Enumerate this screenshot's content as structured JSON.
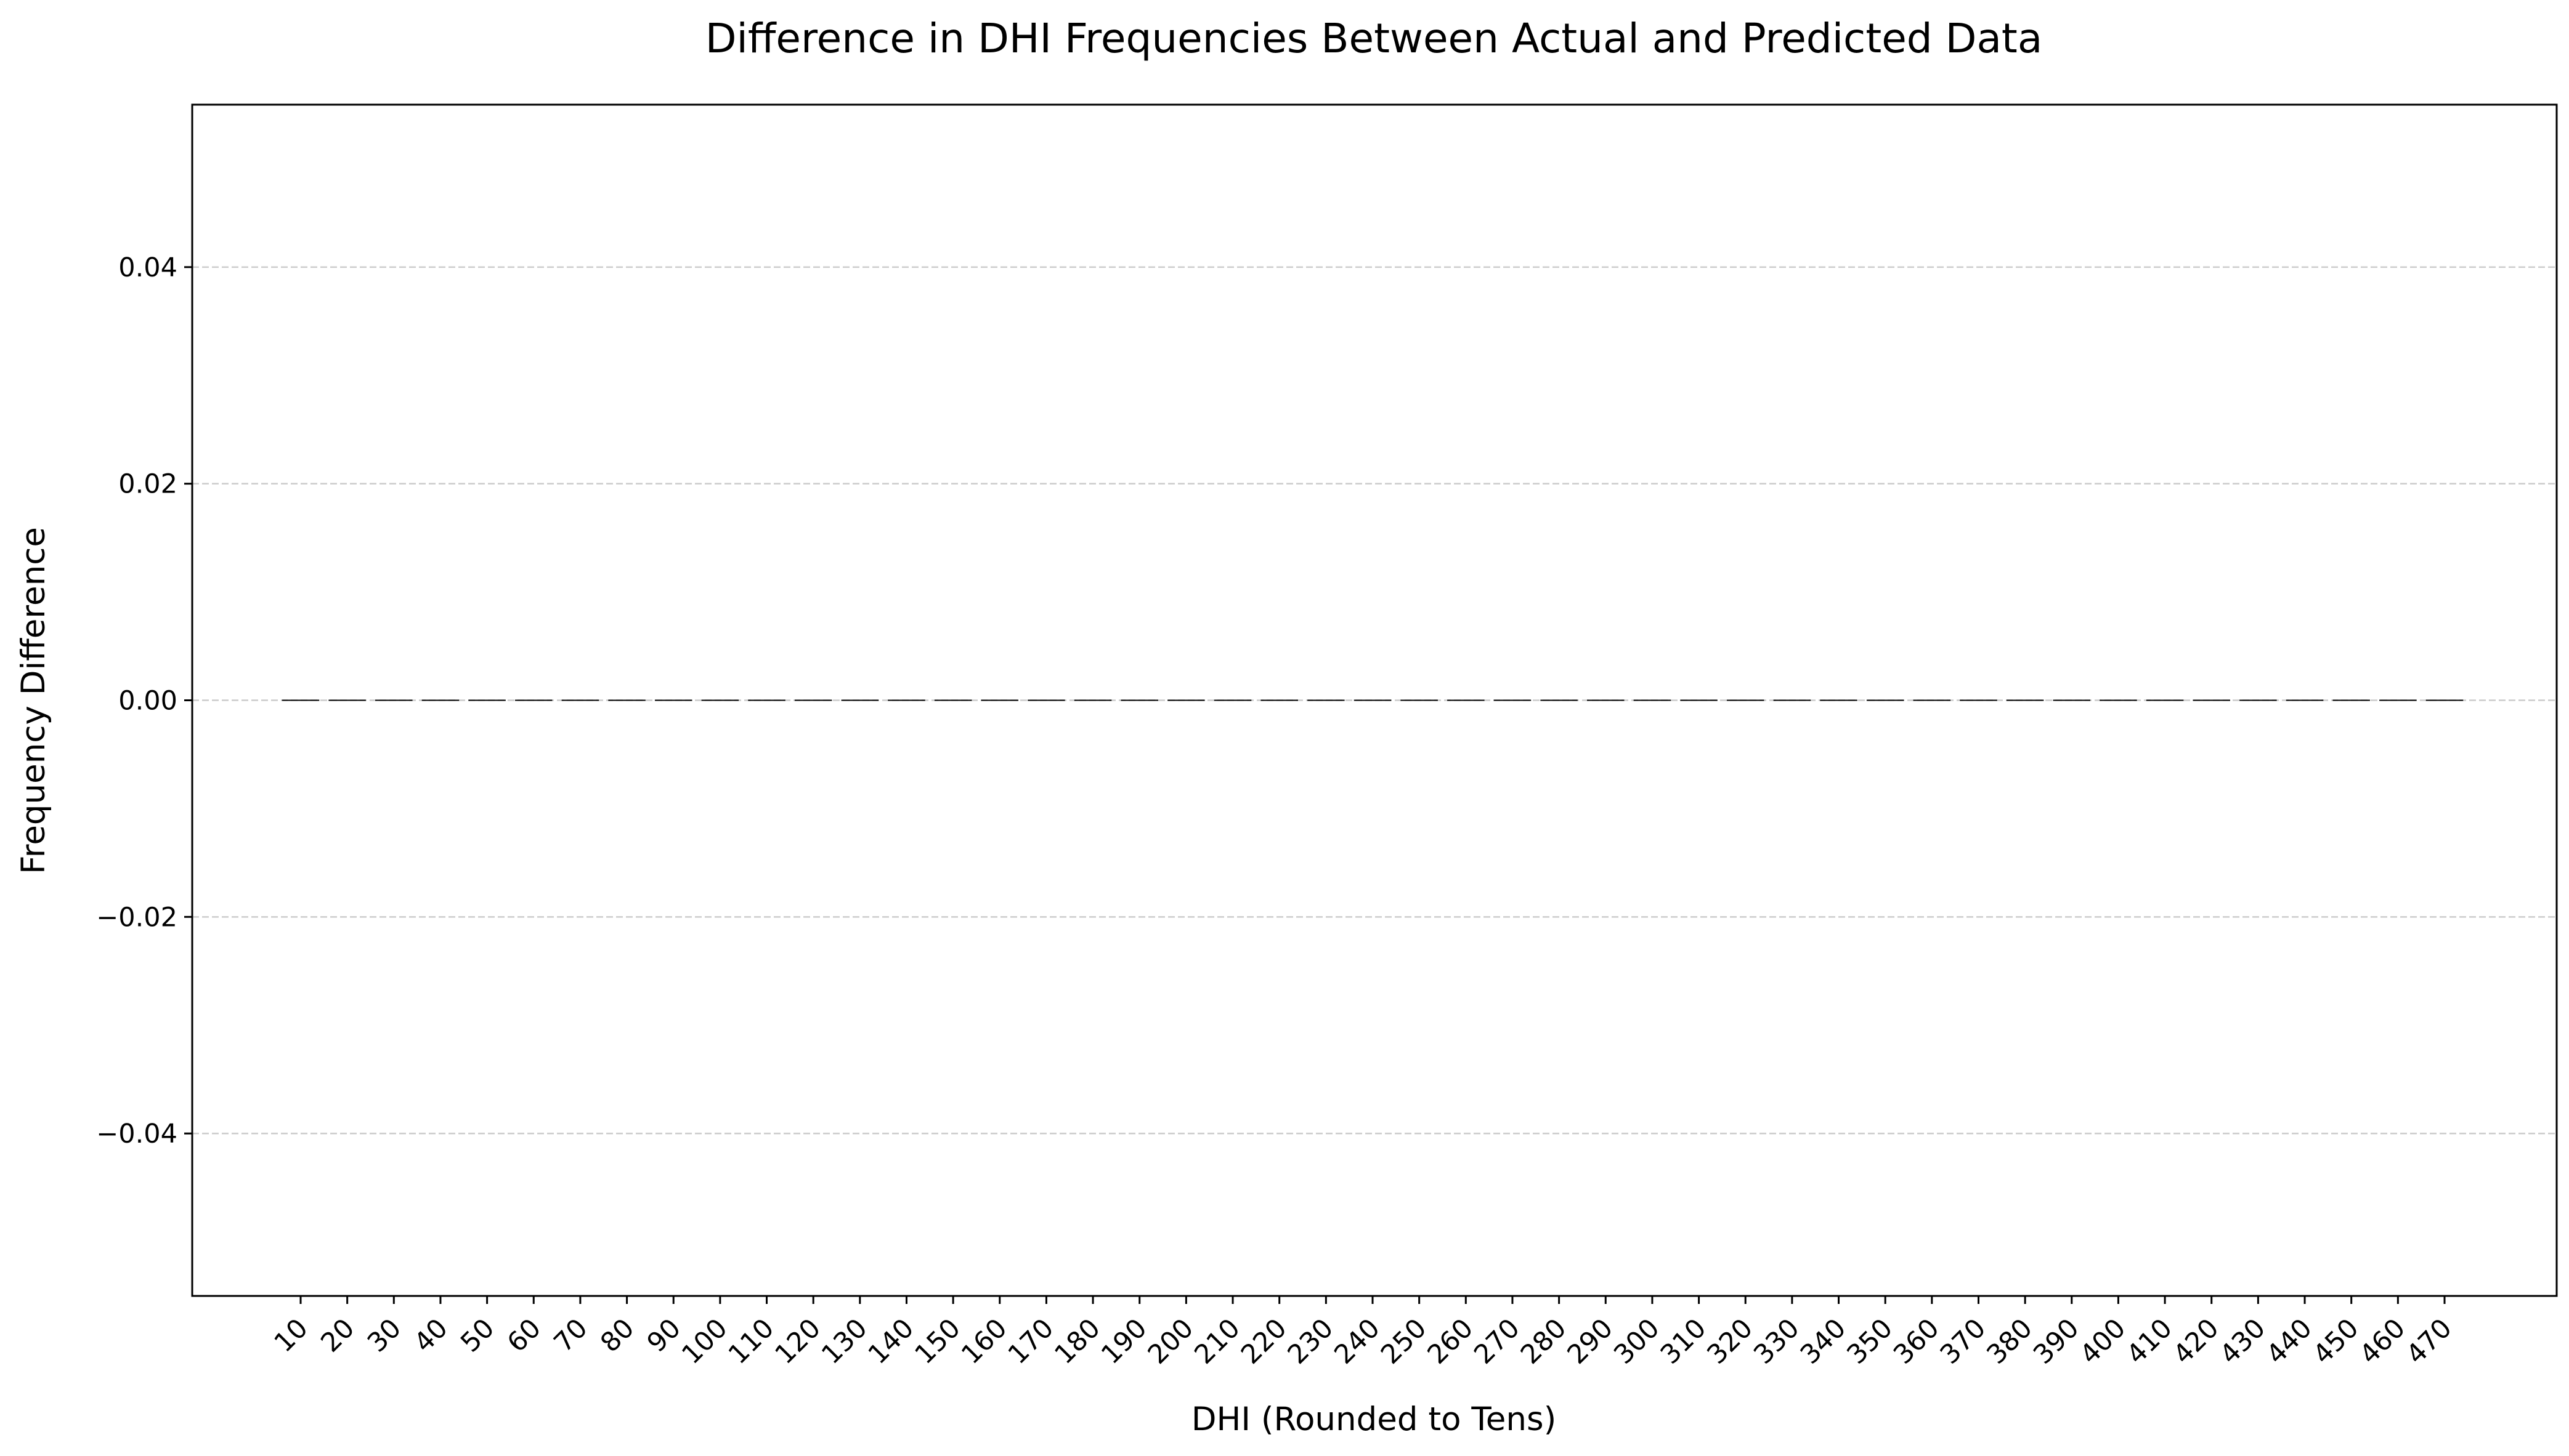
{
  "chart_data": {
    "type": "bar",
    "title": "Difference in DHI Frequencies Between Actual and Predicted Data",
    "xlabel": "DHI (Rounded to Tens)",
    "ylabel": "Frequency Difference",
    "categories": [
      "10",
      "20",
      "30",
      "40",
      "50",
      "60",
      "70",
      "80",
      "90",
      "100",
      "110",
      "120",
      "130",
      "140",
      "150",
      "160",
      "170",
      "180",
      "190",
      "200",
      "210",
      "220",
      "230",
      "240",
      "250",
      "260",
      "270",
      "280",
      "290",
      "300",
      "310",
      "320",
      "330",
      "340",
      "350",
      "360",
      "370",
      "380",
      "390",
      "400",
      "410",
      "420",
      "430",
      "440",
      "450",
      "460",
      "470"
    ],
    "values": [
      0,
      0,
      0,
      0,
      0,
      0,
      0,
      0,
      0,
      0,
      0,
      0,
      0,
      0,
      0,
      0,
      0,
      0,
      0,
      0,
      0,
      0,
      0,
      0,
      0,
      0,
      0,
      0,
      0,
      0,
      0,
      0,
      0,
      0,
      0,
      0,
      0,
      0,
      0,
      0,
      0,
      0,
      0,
      0,
      0,
      0,
      0
    ],
    "ylim": [
      -0.055,
      0.055
    ],
    "yticks": [
      -0.04,
      -0.02,
      0.0,
      0.02,
      0.04
    ],
    "ytick_labels": [
      "−0.04",
      "−0.02",
      "0.00",
      "0.02",
      "0.04"
    ],
    "grid": "y-dashed",
    "bar_color": "#000000"
  }
}
